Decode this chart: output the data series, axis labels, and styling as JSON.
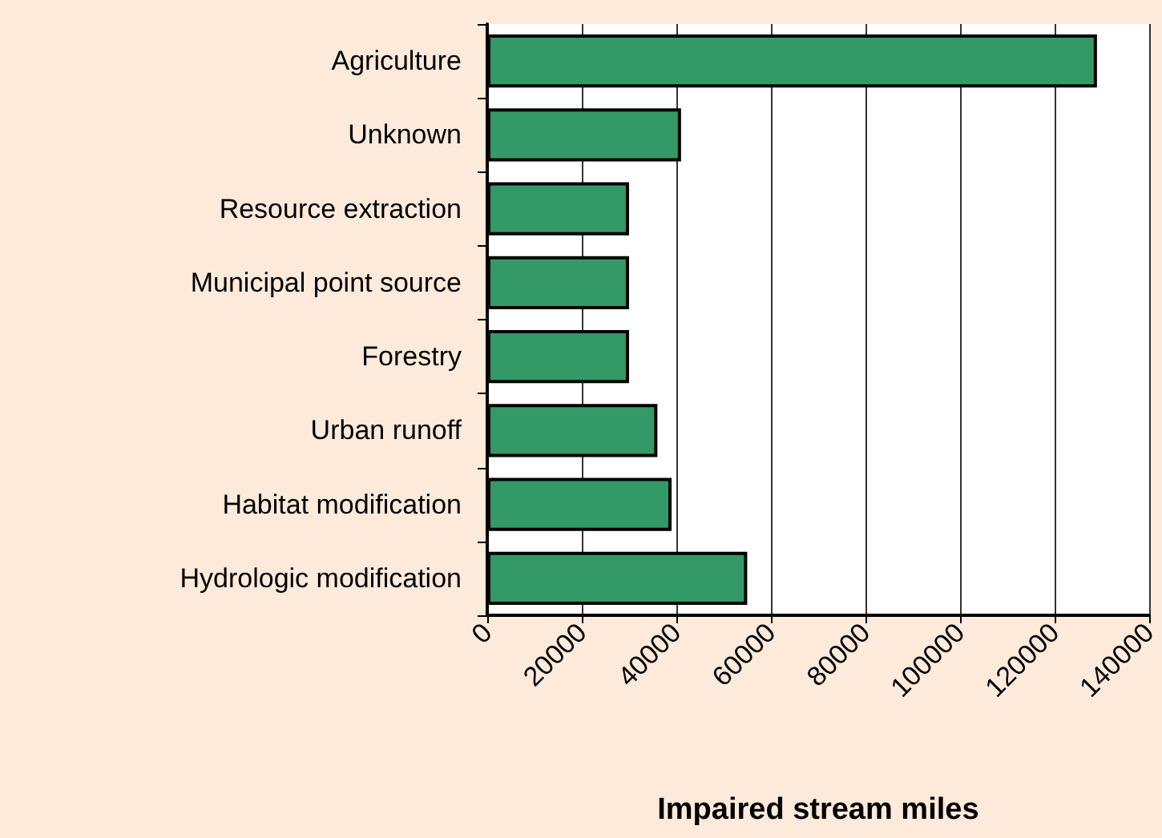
{
  "chart_data": {
    "type": "bar",
    "orientation": "horizontal",
    "xlabel": "Impaired stream miles",
    "categories": [
      "Agriculture",
      "Unknown",
      "Resource extraction",
      "Municipal point source",
      "Forestry",
      "Urban runoff",
      "Habitat modification",
      "Hydrologic modification"
    ],
    "values": [
      129000,
      41000,
      30000,
      30000,
      30000,
      36000,
      39000,
      55000
    ],
    "color": "#339966",
    "xlim": [
      0,
      140000
    ],
    "xticks": [
      0,
      20000,
      40000,
      60000,
      80000,
      100000,
      120000,
      140000
    ],
    "grid": "x"
  }
}
